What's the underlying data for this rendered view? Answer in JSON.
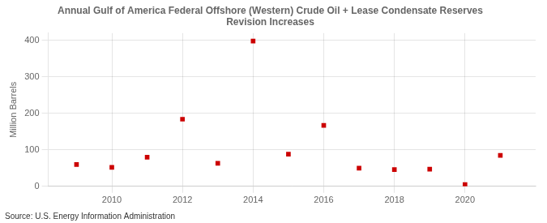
{
  "chart_data": {
    "type": "scatter",
    "title": "Annual Gulf of America Federal Offshore (Western) Crude Oil + Lease Condensate Reserves\nRevision Increases",
    "y_label": "Million Barrels",
    "annotation": "Source: U.S. Energy Information Administration",
    "x": [
      2009,
      2010,
      2011,
      2012,
      2013,
      2014,
      2015,
      2016,
      2017,
      2018,
      2019,
      2020,
      2021
    ],
    "values": [
      60,
      52,
      80,
      184,
      63,
      398,
      88,
      167,
      50,
      46,
      47,
      5,
      85
    ],
    "color": "#CC0000",
    "marker": "square",
    "xlim": [
      2008.2,
      2022.0
    ],
    "xticks": [
      2010,
      2012,
      2014,
      2016,
      2018,
      2020
    ],
    "ylim": [
      0,
      420
    ],
    "yticks": [
      0,
      100,
      200,
      300,
      400
    ],
    "grid": true
  }
}
